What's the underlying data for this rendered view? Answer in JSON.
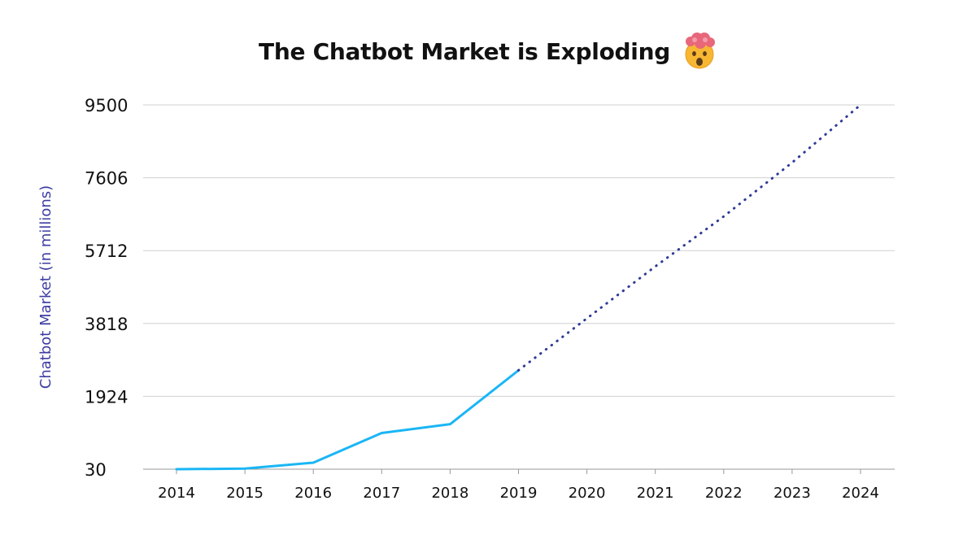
{
  "chart_data": {
    "type": "line",
    "title": "The Chatbot Market is Exploding",
    "title_icon": "exploding-head-emoji-icon",
    "ylabel": "Chatbot Market (in millions)",
    "xlabel": "",
    "x": [
      "2014",
      "2015",
      "2016",
      "2017",
      "2018",
      "2019",
      "2020",
      "2021",
      "2022",
      "2023",
      "2024"
    ],
    "y_ticks": [
      "9500",
      "7606",
      "5712",
      "3818",
      "1924",
      "30"
    ],
    "y_tick_values": [
      9500,
      7606,
      5712,
      3818,
      1924,
      30
    ],
    "ylim": [
      30,
      9500
    ],
    "grid": true,
    "series": [
      {
        "style": "solid",
        "color": "#1ab6f5",
        "x": [
          "2014",
          "2015",
          "2016",
          "2017",
          "2018",
          "2019"
        ],
        "values": [
          30,
          45,
          200,
          970,
          1200,
          2600
        ]
      },
      {
        "style": "dotted",
        "color": "#2f3b96",
        "x": [
          "2019",
          "2020",
          "2021",
          "2022",
          "2023",
          "2024"
        ],
        "values": [
          2600,
          3950,
          5300,
          6600,
          8000,
          9500
        ]
      }
    ]
  },
  "colors": {
    "ylabel": "#3d3da3",
    "grid": "#d0d0d0"
  }
}
